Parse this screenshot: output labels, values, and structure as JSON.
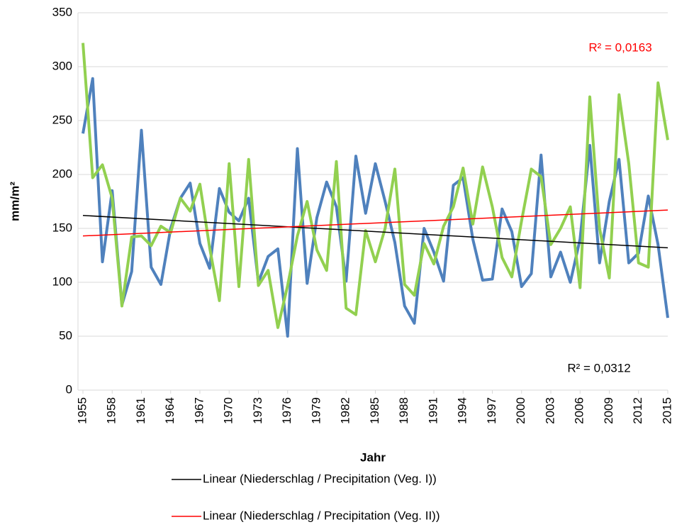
{
  "chart_data": {
    "type": "line",
    "x_label": "Jahr",
    "y_label": "mm/m²",
    "x": [
      1955,
      1956,
      1957,
      1958,
      1959,
      1960,
      1961,
      1962,
      1963,
      1964,
      1965,
      1966,
      1967,
      1968,
      1969,
      1970,
      1971,
      1972,
      1973,
      1974,
      1975,
      1976,
      1977,
      1978,
      1979,
      1980,
      1981,
      1982,
      1983,
      1984,
      1985,
      1986,
      1987,
      1988,
      1989,
      1990,
      1991,
      1992,
      1993,
      1994,
      1995,
      1996,
      1997,
      1998,
      1999,
      2000,
      2001,
      2002,
      2003,
      2004,
      2005,
      2006,
      2007,
      2008,
      2009,
      2010,
      2011,
      2012,
      2013,
      2014,
      2015
    ],
    "series": [
      {
        "color": "#4f81bd",
        "values": [
          238,
          289,
          119,
          185,
          79,
          110,
          241,
          114,
          98,
          150,
          178,
          192,
          136,
          113,
          187,
          165,
          157,
          178,
          100,
          124,
          131,
          50,
          224,
          99,
          160,
          193,
          170,
          101,
          217,
          164,
          210,
          175,
          137,
          78,
          62,
          150,
          128,
          101,
          190,
          197,
          140,
          102,
          103,
          168,
          147,
          96,
          108,
          218,
          105,
          128,
          100,
          140,
          227,
          118,
          175,
          214,
          118,
          127,
          180,
          135,
          67
        ]
      },
      {
        "color": "#92d050",
        "values": [
          322,
          197,
          209,
          178,
          78,
          142,
          143,
          134,
          152,
          146,
          178,
          166,
          191,
          132,
          83,
          210,
          96,
          214,
          97,
          111,
          58,
          97,
          143,
          175,
          130,
          111,
          212,
          76,
          70,
          148,
          119,
          150,
          205,
          98,
          88,
          136,
          117,
          152,
          170,
          206,
          154,
          207,
          170,
          123,
          105,
          157,
          205,
          198,
          135,
          150,
          170,
          95,
          272,
          150,
          104,
          274,
          210,
          118,
          114,
          285,
          232
        ]
      },
      {
        "name": "Linear (Niederschlag / Precipitation (Veg. I))",
        "color": "#000000",
        "x": [
          1955,
          2015
        ],
        "values": [
          162,
          132
        ]
      },
      {
        "name": "Linear (Niederschlag / Precipitation (Veg. II))",
        "color": "#ff0000",
        "x": [
          1955,
          2015
        ],
        "values": [
          143,
          167
        ]
      }
    ],
    "annotations": [
      "R² = 0,0163",
      "R² = 0,0312"
    ],
    "xlim": [
      1955,
      2015
    ],
    "xticks": [
      1955,
      1958,
      1961,
      1964,
      1967,
      1970,
      1973,
      1976,
      1979,
      1982,
      1985,
      1988,
      1991,
      1994,
      1997,
      2000,
      2003,
      2006,
      2009,
      2012,
      2015
    ],
    "ylim": [
      0,
      350
    ],
    "yticks": [
      0,
      50,
      100,
      150,
      200,
      250,
      300,
      350
    ],
    "grid": true
  }
}
